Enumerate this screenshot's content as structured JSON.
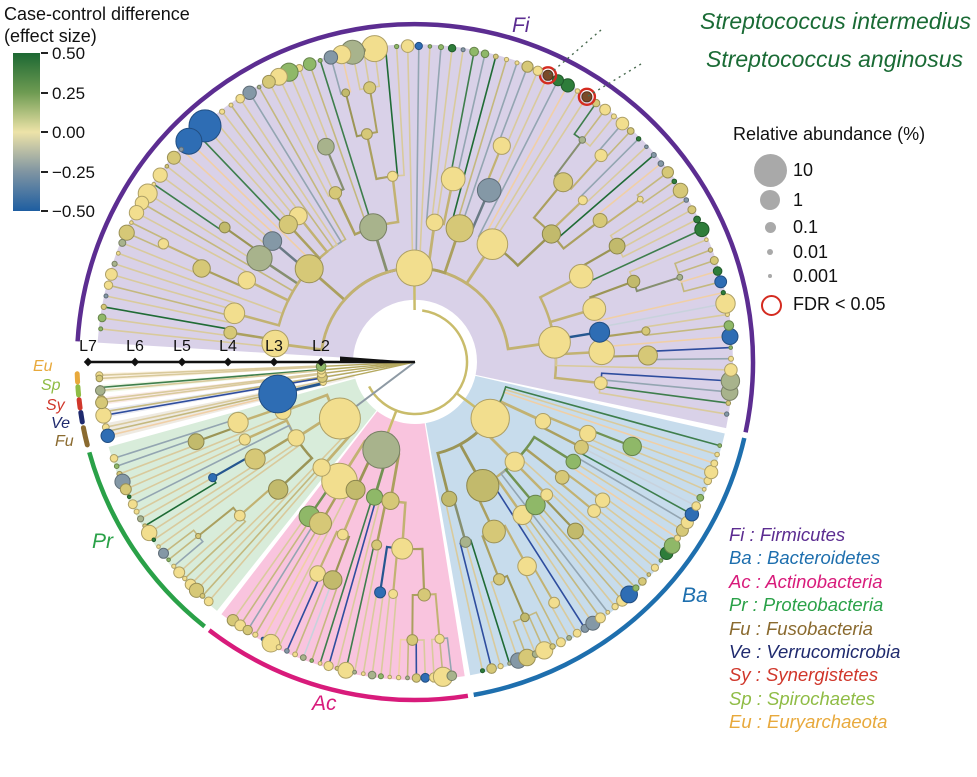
{
  "colorbar": {
    "title_line1": "Case-control difference",
    "title_line2": "(effect size)",
    "ticks": [
      "0.50",
      "0.25",
      "0.00",
      "−0.25",
      "−0.50"
    ],
    "gradient": [
      "#1D6833 0%",
      "#6E9B52 25%",
      "#EDE3A8 50%",
      "#8095A2 75%",
      "#1E5EA1 100%"
    ]
  },
  "size_legend": {
    "title": "Relative abundance (%)",
    "items": [
      {
        "label": "10"
      },
      {
        "label": "1"
      },
      {
        "label": "0.1"
      },
      {
        "label": "0.01"
      },
      {
        "label": "0.001"
      }
    ],
    "fdr_label": "FDR < 0.05",
    "fdr_color": "#D42B20"
  },
  "annotations": {
    "color": "#1A6B35",
    "items": [
      {
        "label": "Streptococcus intermedius"
      },
      {
        "label": "Streptococcus anginosus"
      }
    ]
  },
  "axis": {
    "labels": [
      "L7",
      "L6",
      "L5",
      "L4",
      "L3",
      "L2"
    ]
  },
  "phyla": [
    {
      "abbrev": "Fi",
      "name": "Firmicutes",
      "legend": "Fi : Firmicutes",
      "color": "#5C2D91",
      "bg": "#D9D1E8",
      "bg_opacity": 1,
      "start": 168.0,
      "end": 356.5,
      "leaves": 92
    },
    {
      "abbrev": "Ba",
      "name": "Bacteroidetes",
      "legend": "Ba : Bacteroidetes",
      "color": "#1E6FAE",
      "bg": "#C7DCEC",
      "bg_opacity": 1,
      "start": 100.0,
      "end": 167.0,
      "leaves": 38
    },
    {
      "abbrev": "Ac",
      "name": "Actinobacteria",
      "legend": "Ac : Actinobacteria",
      "color": "#D81B7B",
      "bg": "#F9C4DE",
      "bg_opacity": 1,
      "start": 52.5,
      "end": 99.0,
      "leaves": 27
    },
    {
      "abbrev": "Pr",
      "name": "Proteobacteria",
      "legend": "Pr : Proteobacteria",
      "color": "#2AA148",
      "bg": "#D8ECDA",
      "bg_opacity": 1,
      "start": 15.5,
      "end": 51.5,
      "leaves": 22
    },
    {
      "abbrev": "Fu",
      "name": "Fusobacteria",
      "legend": "Fu : Fusobacteria",
      "color": "#8A6A2F",
      "bg": "#8A6A2F",
      "bg_opacity": 0.14,
      "start": 11.2,
      "end": 14.2,
      "leaves": 3
    },
    {
      "abbrev": "Ve",
      "name": "Verrucomicrobia",
      "legend": "Ve : Verrucomicrobia",
      "color": "#1F2A6E",
      "bg": "#1F2A6E",
      "bg_opacity": 0.1,
      "start": 8.6,
      "end": 10.2,
      "leaves": 2
    },
    {
      "abbrev": "Sy",
      "name": "Synergistetes",
      "legend": "Sy : Synergistetes",
      "color": "#D0372B",
      "bg": "#D0372B",
      "bg_opacity": 0.1,
      "start": 6.4,
      "end": 7.8,
      "leaves": 2
    },
    {
      "abbrev": "Sp",
      "name": "Spirochaetes",
      "legend": "Sp : Spirochaetes",
      "color": "#8FBC45",
      "bg": "#8FBC45",
      "bg_opacity": 0.14,
      "start": 4.2,
      "end": 5.6,
      "leaves": 2
    },
    {
      "abbrev": "Eu",
      "name": "Euryarchaeota",
      "legend": "Eu : Euryarchaeota",
      "color": "#E8A93C",
      "bg": "#E8A93C",
      "bg_opacity": 0.14,
      "start": 2.0,
      "end": 3.4,
      "leaves": 2
    }
  ],
  "tree_style": {
    "seed": 7,
    "inner_palette": [
      [
        "#F2DE8E",
        52
      ],
      [
        "#D6C877",
        16
      ],
      [
        "#C2BA6C",
        12
      ],
      [
        "#A8B38C",
        9
      ],
      [
        "#8FB868",
        5
      ],
      [
        "#8498A6",
        4
      ],
      [
        "#2E6DB4",
        2
      ]
    ],
    "leaf_tip_palette": [
      [
        "#F2DE8E",
        40
      ],
      [
        "#D6C877",
        15
      ],
      [
        "#A8B38C",
        12
      ],
      [
        "#8FB868",
        12
      ],
      [
        "#2E7D3A",
        8
      ],
      [
        "#8498A6",
        7
      ],
      [
        "#2E6DB4",
        6
      ]
    ],
    "leaf_line_palette": [
      [
        "#D9CA9C",
        46
      ],
      [
        "#C4B87E",
        14
      ],
      [
        "#93A5B1",
        12
      ],
      [
        "#3E7E4C",
        9
      ],
      [
        "#F0CFA6",
        7
      ],
      [
        "#2E4D9E",
        5
      ],
      [
        "#1F6B35",
        4
      ],
      [
        "#C8D2DC",
        3
      ]
    ],
    "root_color": "#C9BC6B",
    "gray_stub": "#8E9AA4"
  },
  "highlights": {
    "big_blue_leaves": [
      {
        "phi": 312.5,
        "r": 16,
        "color": "#2E6DB4"
      },
      {
        "phi": 316.5,
        "r": 13,
        "color": "#2E6DB4"
      }
    ],
    "significant": [
      {
        "phi": 246.0,
        "annotation_index": 0
      },
      {
        "phi": 237.5,
        "annotation_index": 1
      }
    ],
    "sig_ring_color": "#D42B20",
    "sig_line_color": "#C3262A",
    "sig_fill_color": "#7A4A28",
    "leader_color": "#4A6B50"
  },
  "chart_data": {
    "type": "circular-cladogram",
    "title": "Case-control difference (effect size) phylogenetic tree",
    "levels": [
      "L2",
      "L3",
      "L4",
      "L5",
      "L6",
      "L7"
    ],
    "effect_size_scale": {
      "min": -0.5,
      "max": 0.5,
      "ticks": [
        0.5,
        0.25,
        0.0,
        -0.25,
        -0.5
      ],
      "colors": [
        "#1E5EA1",
        "#8095A2",
        "#EDE3A8",
        "#6E9B52",
        "#1D6833"
      ]
    },
    "abundance_scale_percent": [
      10,
      1,
      0.1,
      0.01,
      0.001
    ],
    "significance_threshold": "FDR < 0.05",
    "significant_taxa": [
      "Streptococcus intermedius",
      "Streptococcus anginosus"
    ],
    "phyla_order_clockwise_from_axis": [
      "Eu",
      "Sp",
      "Sy",
      "Ve",
      "Fu",
      "Pr",
      "Ac",
      "Ba",
      "Fi"
    ],
    "legend_order": [
      "Firmicutes",
      "Bacteroidetes",
      "Actinobacteria",
      "Proteobacteria",
      "Fusobacteria",
      "Verrucomicrobia",
      "Synergistetes",
      "Spirochaetes",
      "Euryarchaeota"
    ]
  }
}
